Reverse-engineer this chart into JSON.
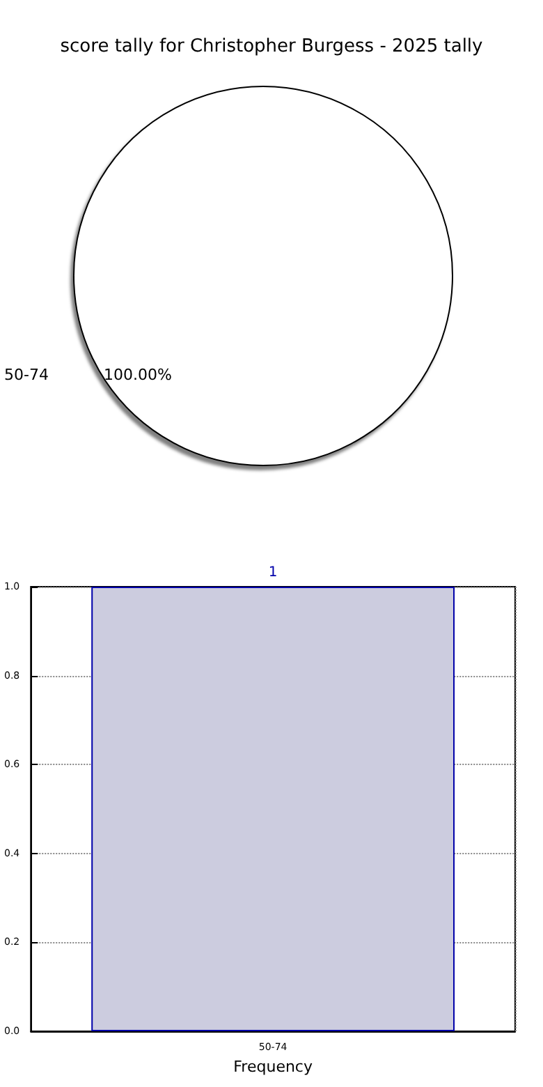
{
  "chart_data": [
    {
      "type": "pie",
      "title": "score tally for Christopher Burgess - 2025 tally",
      "categories": [
        "50-74"
      ],
      "values": [
        100
      ],
      "colors": [
        "#ffffff"
      ],
      "value_labels": [
        "100.00%"
      ],
      "legend": false
    },
    {
      "type": "bar",
      "categories": [
        "50-74"
      ],
      "values": [
        1
      ],
      "color": "#ccccdf",
      "data_labels": true,
      "xlabel": "Frequency",
      "ylim": [
        0,
        1
      ],
      "yticks": [
        {
          "value": 0,
          "label": "0.0"
        },
        {
          "value": 0.2,
          "label": "0.2"
        },
        {
          "value": 0.4,
          "label": "0.4"
        },
        {
          "value": 0.6,
          "label": "0.6"
        },
        {
          "value": 0.8,
          "label": "0.8"
        },
        {
          "value": 1,
          "label": "1.0"
        }
      ],
      "grid": true,
      "legend": false
    }
  ]
}
